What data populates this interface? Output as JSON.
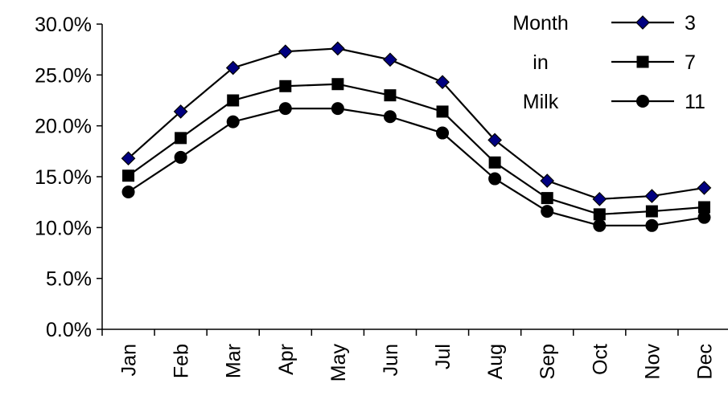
{
  "chart_data": {
    "type": "line",
    "categories": [
      "Jan",
      "Feb",
      "Mar",
      "Apr",
      "May",
      "Jun",
      "Jul",
      "Aug",
      "Sep",
      "Oct",
      "Nov",
      "Dec"
    ],
    "ylim": [
      0,
      30
    ],
    "yticks": [
      0,
      5,
      10,
      15,
      20,
      25,
      30
    ],
    "ytick_labels": [
      "0.0%",
      "5.0%",
      "10.0%",
      "15.0%",
      "20.0%",
      "25.0%",
      "30.0%"
    ],
    "legend_title": [
      "Month",
      "in",
      "Milk"
    ],
    "legend_position": "top-right",
    "grid": false,
    "series": [
      {
        "name": "3",
        "marker": "diamond",
        "color": "#000080",
        "values": [
          16.8,
          21.4,
          25.7,
          27.3,
          27.6,
          26.5,
          24.3,
          18.6,
          14.6,
          12.8,
          13.1,
          13.9
        ]
      },
      {
        "name": "7",
        "marker": "square",
        "color": "#000000",
        "values": [
          15.1,
          18.8,
          22.5,
          23.9,
          24.1,
          23.0,
          21.4,
          16.4,
          12.9,
          11.3,
          11.6,
          12.0
        ]
      },
      {
        "name": "11",
        "marker": "circle",
        "color": "#000000",
        "values": [
          13.5,
          16.9,
          20.4,
          21.7,
          21.7,
          20.9,
          19.3,
          14.8,
          11.6,
          10.2,
          10.2,
          11.0
        ]
      }
    ]
  }
}
